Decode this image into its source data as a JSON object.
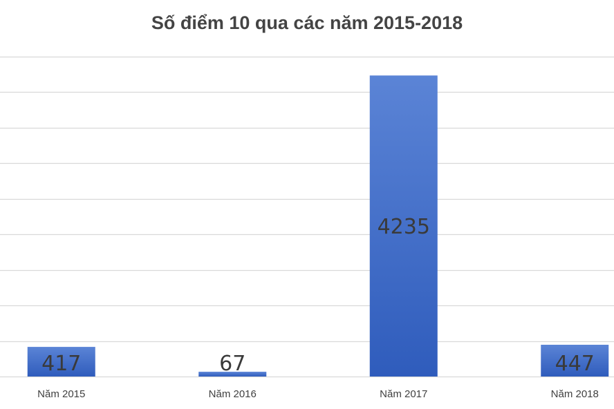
{
  "chart_data": {
    "type": "bar",
    "title": "Số điểm 10 qua các năm 2015-2018",
    "categories": [
      "Năm 2015",
      "Năm 2016",
      "Năm 2017",
      "Năm 2018"
    ],
    "values": [
      417,
      67,
      4235,
      447
    ],
    "xlabel": "",
    "ylabel": "",
    "ylim": [
      0,
      4500
    ],
    "grid": true,
    "legend": "none",
    "data_labels": true,
    "colors": {
      "bar_top": "#5b84d6",
      "bar_bottom": "#2f5cbc",
      "gridline": "#d9d9d9",
      "label": "#404040",
      "title": "#444444"
    }
  }
}
